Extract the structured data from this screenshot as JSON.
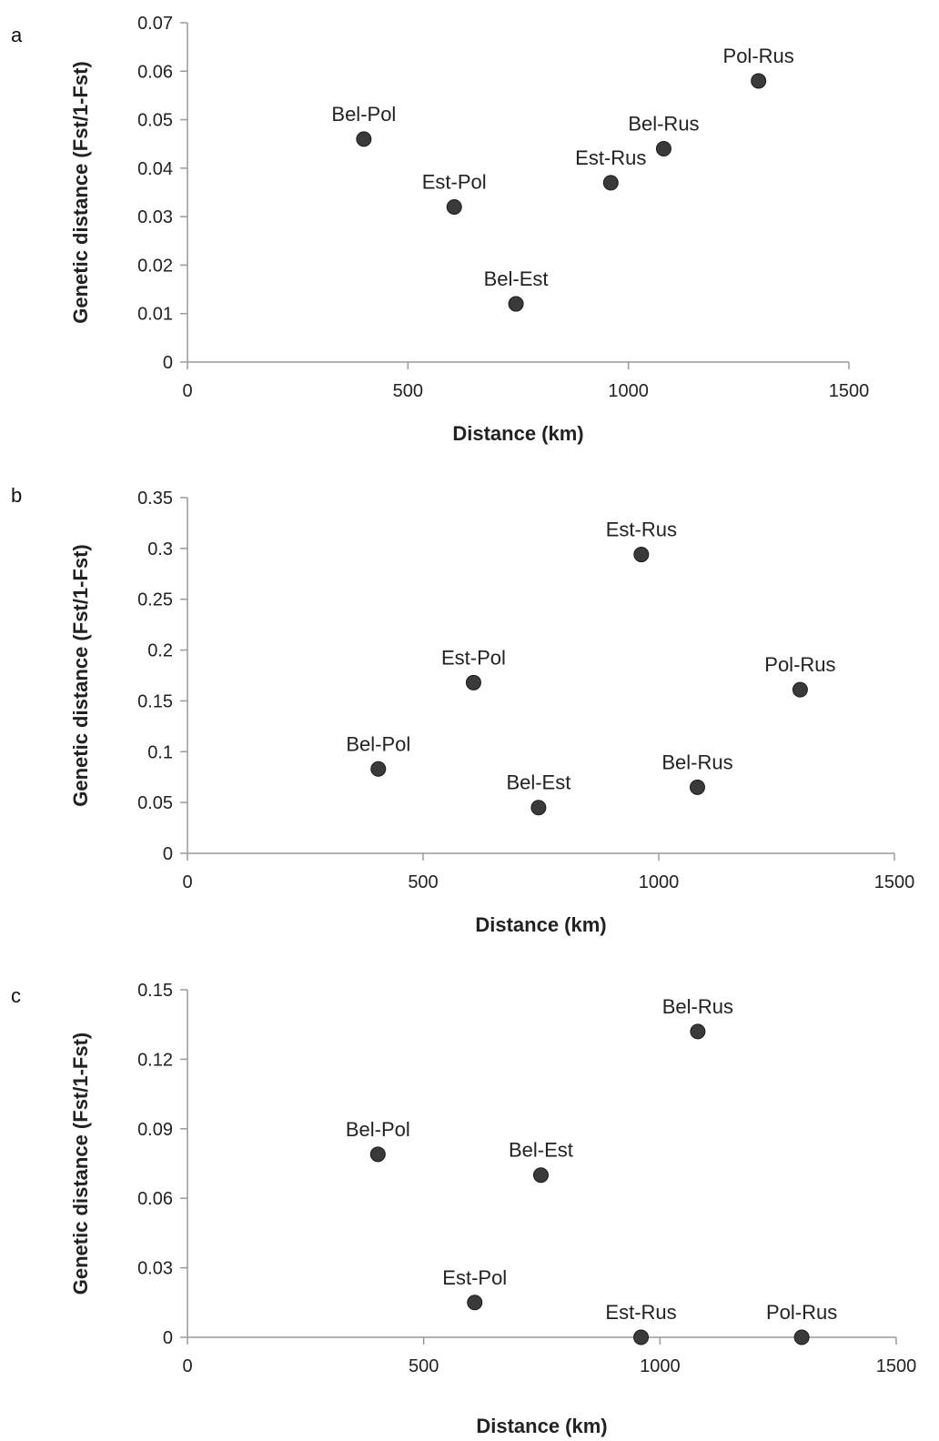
{
  "chart_data": [
    {
      "panel": "a",
      "type": "scatter",
      "xlabel": "Distance (km)",
      "ylabel": "Genetic distance (Fst/1-Fst)",
      "xlim": [
        0,
        1500
      ],
      "ylim": [
        0,
        0.07
      ],
      "xticks": [
        "0",
        "500",
        "1000",
        "1500"
      ],
      "yticks": [
        "0",
        "0.01",
        "0.02",
        "0.03",
        "0.04",
        "0.05",
        "0.06",
        "0.07"
      ],
      "grid": false,
      "points": [
        {
          "label": "Bel-Pol",
          "x": 400,
          "y": 0.046
        },
        {
          "label": "Est-Pol",
          "x": 605,
          "y": 0.032
        },
        {
          "label": "Bel-Est",
          "x": 745,
          "y": 0.012
        },
        {
          "label": "Est-Rus",
          "x": 960,
          "y": 0.037
        },
        {
          "label": "Bel-Rus",
          "x": 1080,
          "y": 0.044
        },
        {
          "label": "Pol-Rus",
          "x": 1295,
          "y": 0.058
        }
      ]
    },
    {
      "panel": "b",
      "type": "scatter",
      "xlabel": "Distance (km)",
      "ylabel": "Genetic distance (Fst/1-Fst)",
      "xlim": [
        0,
        1500
      ],
      "ylim": [
        0,
        0.35
      ],
      "xticks": [
        "0",
        "500",
        "1000",
        "1500"
      ],
      "yticks": [
        "0",
        "0.05",
        "0.1",
        "0.15",
        "0.2",
        "0.25",
        "0.3",
        "0.35"
      ],
      "grid": false,
      "points": [
        {
          "label": "Bel-Pol",
          "x": 405,
          "y": 0.083
        },
        {
          "label": "Est-Pol",
          "x": 607,
          "y": 0.168
        },
        {
          "label": "Bel-Est",
          "x": 745,
          "y": 0.045
        },
        {
          "label": "Est-Rus",
          "x": 963,
          "y": 0.294
        },
        {
          "label": "Bel-Rus",
          "x": 1082,
          "y": 0.065
        },
        {
          "label": "Pol-Rus",
          "x": 1300,
          "y": 0.161
        }
      ]
    },
    {
      "panel": "c",
      "type": "scatter",
      "xlabel": "Distance (km)",
      "ylabel": "Genetic distance (Fst/1-Fst)",
      "xlim": [
        0,
        1500
      ],
      "ylim": [
        0,
        0.15
      ],
      "xticks": [
        "0",
        "500",
        "1000",
        "1500"
      ],
      "yticks": [
        "0",
        "0.03",
        "0.06",
        "0.09",
        "0.12",
        "0.15"
      ],
      "grid": false,
      "points": [
        {
          "label": "Bel-Pol",
          "x": 403,
          "y": 0.079
        },
        {
          "label": "Est-Pol",
          "x": 608,
          "y": 0.015
        },
        {
          "label": "Bel-Est",
          "x": 748,
          "y": 0.07
        },
        {
          "label": "Est-Rus",
          "x": 960,
          "y": 0.0
        },
        {
          "label": "Bel-Rus",
          "x": 1080,
          "y": 0.132
        },
        {
          "label": "Pol-Rus",
          "x": 1300,
          "y": 0.0
        }
      ]
    }
  ],
  "colors": {
    "point": "#3a3a3a",
    "axis": "#9a9a9a",
    "text": "#222222"
  }
}
